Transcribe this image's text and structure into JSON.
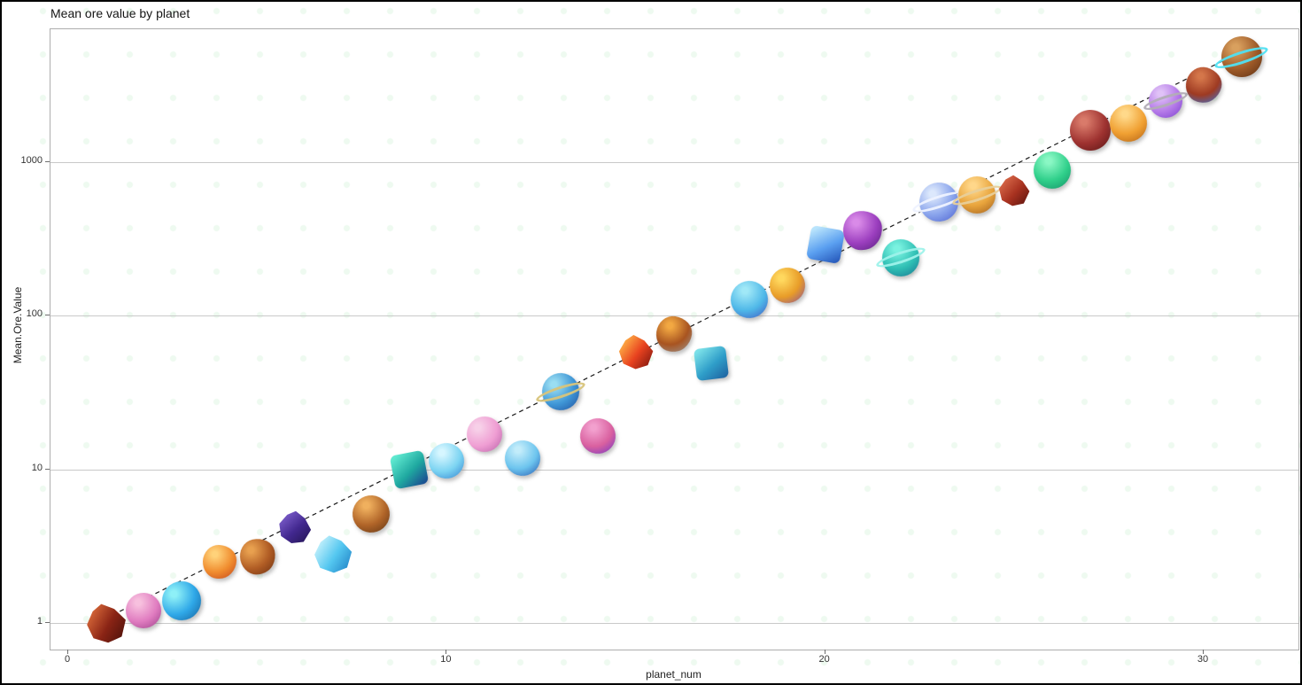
{
  "chart_data": {
    "type": "scatter",
    "title": "Mean ore value by planet",
    "xlabel": "planet_num",
    "ylabel": "Mean.Ore.Value",
    "x_ticks": [
      0,
      10,
      20,
      30
    ],
    "y_ticks": [
      1,
      10,
      100,
      1000
    ],
    "y_scale": "log",
    "xlim": [
      -0.5,
      32.5
    ],
    "ylim": [
      0.75,
      6500
    ],
    "grid": "horizontal-only",
    "legend": "none",
    "trendline": {
      "fit": "exponential",
      "style": "dashed",
      "color": "#1a1a1a"
    },
    "points": [
      {
        "planet_num": 1,
        "value": 1.0,
        "icon": "dark-red-spiky-crystal",
        "shape": "crystal",
        "colors": [
          "#d96a3a",
          "#8a2415",
          "#4a100a"
        ],
        "size": 46
      },
      {
        "planet_num": 2,
        "value": 1.2,
        "icon": "pink-gem-orb",
        "shape": "orb",
        "colors": [
          "#f7c0de",
          "#e07cc0",
          "#9c3f8a"
        ],
        "size": 40
      },
      {
        "planet_num": 3,
        "value": 1.4,
        "icon": "cyan-leaf-orb",
        "shape": "orb",
        "colors": [
          "#8ef0f7",
          "#2fa8e8",
          "#16619c"
        ],
        "size": 44
      },
      {
        "planet_num": 4,
        "value": 2.5,
        "icon": "orange-spiky-sun",
        "shape": "rock",
        "colors": [
          "#ffd27a",
          "#f08c2e",
          "#c2431c"
        ],
        "size": 38
      },
      {
        "planet_num": 5,
        "value": 2.7,
        "icon": "brown-spiked-boulder",
        "shape": "rock",
        "colors": [
          "#e8a04f",
          "#b05c24",
          "#6b3012"
        ],
        "size": 40
      },
      {
        "planet_num": 6,
        "value": 4.2,
        "icon": "indigo-crystal",
        "shape": "crystal",
        "colors": [
          "#7a5cc9",
          "#42288f",
          "#241554"
        ],
        "size": 38
      },
      {
        "planet_num": 7,
        "value": 2.8,
        "icon": "light-blue-tall-crystal",
        "shape": "crystal",
        "colors": [
          "#c8f2fc",
          "#54c7f0",
          "#1e7fc4"
        ],
        "size": 44
      },
      {
        "planet_num": 8,
        "value": 5.1,
        "icon": "orange-orb-cyan-patches",
        "shape": "orb",
        "colors": [
          "#f0b05e",
          "#b06428",
          "#5e3414"
        ],
        "size": 42
      },
      {
        "planet_num": 9,
        "value": 10.0,
        "icon": "teal-blue-cube-gem",
        "shape": "cube",
        "colors": [
          "#5ee8cf",
          "#1fa8a0",
          "#1a3f8f"
        ],
        "size": 38
      },
      {
        "planet_num": 10,
        "value": 11.4,
        "icon": "ice-blue-spiky-orb",
        "shape": "orb",
        "colors": [
          "#d6f6ff",
          "#7cd4f2",
          "#2f7fd0"
        ],
        "size": 40
      },
      {
        "planet_num": 11,
        "value": 17.0,
        "icon": "pink-bumpy-orb",
        "shape": "orb",
        "colors": [
          "#f7d0e8",
          "#ef9ed3",
          "#b85fa8"
        ],
        "size": 40
      },
      {
        "planet_num": 12,
        "value": 11.8,
        "icon": "blue-white-orb",
        "shape": "orb",
        "colors": [
          "#c2ecfa",
          "#6cc4ee",
          "#2456b0"
        ],
        "size": 40
      },
      {
        "planet_num": 13,
        "value": 32.0,
        "icon": "blue-planet-gold-spear",
        "shape": "ringed",
        "colors": [
          "#9adef2",
          "#3f96d6",
          "#1f4f9e"
        ],
        "ring": "#d8c47a",
        "size": 42
      },
      {
        "planet_num": 14,
        "value": 16.5,
        "icon": "pink-purple-rose-orb",
        "shape": "orb",
        "colors": [
          "#f2a0ce",
          "#d9609f",
          "#6f35c9"
        ],
        "size": 40
      },
      {
        "planet_num": 15,
        "value": 58.0,
        "icon": "red-lava-crystal",
        "shape": "crystal",
        "colors": [
          "#ffb347",
          "#e8421f",
          "#7a150e"
        ],
        "size": 40
      },
      {
        "planet_num": 16,
        "value": 76.0,
        "icon": "orange-boulder-gray-rocks",
        "shape": "rock",
        "colors": [
          "#f2a842",
          "#a85420",
          "#9a9a9a"
        ],
        "size": 40
      },
      {
        "planet_num": 17,
        "value": 49.0,
        "icon": "teal-cube-green-leaves",
        "shape": "cube",
        "colors": [
          "#7ae0e8",
          "#2f9ec9",
          "#1d5f9e"
        ],
        "size": 36
      },
      {
        "planet_num": 18,
        "value": 128.0,
        "icon": "cyan-orb-gray-gears",
        "shape": "orb",
        "colors": [
          "#a0e8f7",
          "#4fb8e8",
          "#3f54c2"
        ],
        "size": 42
      },
      {
        "planet_num": 19,
        "value": 158.0,
        "icon": "gold-orb-purple-rim",
        "shape": "orb",
        "colors": [
          "#ffd85e",
          "#e89c28",
          "#8a4f9c"
        ],
        "size": 40
      },
      {
        "planet_num": 20,
        "value": 290.0,
        "icon": "blue-ice-cube",
        "shape": "cube",
        "colors": [
          "#b9e4fc",
          "#5a9ff0",
          "#2050b4"
        ],
        "size": 38
      },
      {
        "planet_num": 21,
        "value": 359.0,
        "icon": "purple-blob-planet",
        "shape": "rock",
        "colors": [
          "#d98ae8",
          "#9c3fbf",
          "#571e7e"
        ],
        "size": 44
      },
      {
        "planet_num": 22,
        "value": 239.0,
        "icon": "teal-ringed-planet",
        "shape": "ringed",
        "colors": [
          "#7af2e0",
          "#2fbfb4",
          "#17718f"
        ],
        "ring": "#9ef2ea",
        "size": 42
      },
      {
        "planet_num": 23,
        "value": 551.0,
        "icon": "periwinkle-ringed-planet",
        "shape": "ringed",
        "colors": [
          "#dce8fc",
          "#8aa4ec",
          "#4a5fd0"
        ],
        "ring": "#eef2ff",
        "size": 44
      },
      {
        "planet_num": 24,
        "value": 611.0,
        "icon": "orange-ringed-planet",
        "shape": "ringed",
        "colors": [
          "#ffd78a",
          "#e8a43c",
          "#9c5a1c"
        ],
        "ring": "#e8cf9a",
        "size": 42
      },
      {
        "planet_num": 25,
        "value": 654.0,
        "icon": "red-brown-crystal-shard",
        "shape": "crystal",
        "colors": [
          "#d96a4a",
          "#a83220",
          "#5e150e"
        ],
        "size": 36
      },
      {
        "planet_num": 26,
        "value": 890.0,
        "icon": "green-planet",
        "shape": "orb",
        "colors": [
          "#8af7c4",
          "#2fcf8a",
          "#148f66"
        ],
        "size": 42
      },
      {
        "planet_num": 27,
        "value": 1620.0,
        "icon": "dark-red-rose-planet",
        "shape": "orb",
        "colors": [
          "#d97a6a",
          "#9e3230",
          "#571414"
        ],
        "size": 46
      },
      {
        "planet_num": 28,
        "value": 1790.0,
        "icon": "orange-swirl-planet",
        "shape": "orb",
        "colors": [
          "#ffd98a",
          "#f0a032",
          "#b05e14"
        ],
        "size": 42
      },
      {
        "planet_num": 29,
        "value": 2500.0,
        "icon": "purple-orb-gray-ring",
        "shape": "ringed",
        "colors": [
          "#e0c2f7",
          "#b57ae8",
          "#7a3fcf"
        ],
        "ring": "#b2adb6",
        "size": 38
      },
      {
        "planet_num": 30,
        "value": 3170.0,
        "icon": "red-rock-blue-crystals",
        "shape": "rock",
        "colors": [
          "#d4764a",
          "#9e3a22",
          "#2f7ae8"
        ],
        "size": 40
      },
      {
        "planet_num": 31,
        "value": 4830.0,
        "icon": "brown-planet-cyan-ring",
        "shape": "ringed",
        "colors": [
          "#d9a05e",
          "#9e5a28",
          "#5a2f14"
        ],
        "ring": "#4fe0f2",
        "size": 46
      }
    ]
  }
}
